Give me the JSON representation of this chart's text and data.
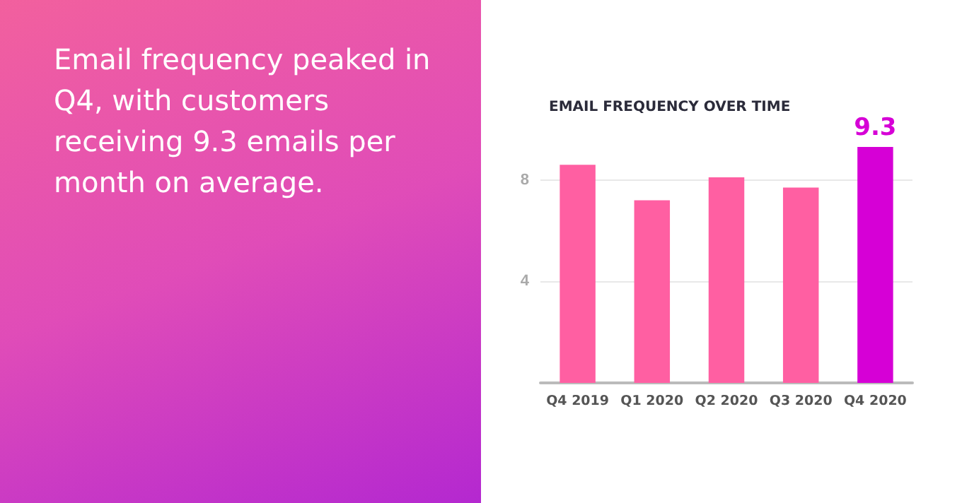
{
  "chart_data": {
    "type": "bar",
    "title": "EMAIL FREQUENCY OVER TIME",
    "subtitle": "Email frequency peaked in Q4, with customers receiving 9.3 emails per month on average.",
    "categories": [
      "Q4 2019",
      "Q1 2020",
      "Q2 2020",
      "Q3 2020",
      "Q4 2020"
    ],
    "values": [
      8.6,
      7.2,
      8.1,
      7.7,
      9.3
    ],
    "colors": [
      "#ff5fa2",
      "#ff5fa2",
      "#ff5fa2",
      "#ff5fa2",
      "#d600d6"
    ],
    "value_labels": [
      null,
      null,
      null,
      null,
      "9.3"
    ],
    "ylim": [
      0,
      9.3
    ],
    "yticks": [
      {
        "value": 0,
        "label": null
      },
      4,
      8
    ],
    "grid": "y"
  }
}
